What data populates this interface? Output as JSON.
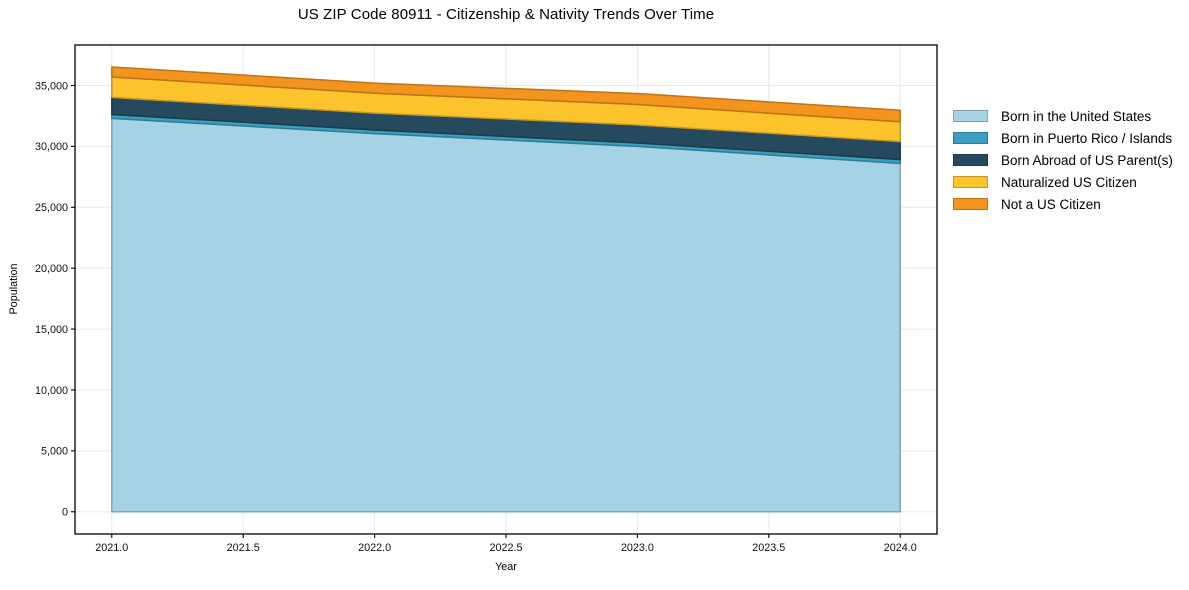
{
  "chart_data": {
    "type": "area",
    "stacked": true,
    "title": "US ZIP Code 80911 - Citizenship & Nativity Trends Over Time",
    "xlabel": "Year",
    "ylabel": "Population",
    "x": [
      2021,
      2022,
      2023,
      2024
    ],
    "series": [
      {
        "name": "Born in the United States",
        "color": "#a6d2e6",
        "values": [
          32300,
          31050,
          30000,
          28600
        ]
      },
      {
        "name": "Born in Puerto Rico / Islands",
        "color": "#3ba0c0",
        "values": [
          320,
          300,
          280,
          320
        ]
      },
      {
        "name": "Born Abroad of US Parent(s)",
        "color": "#254a5d",
        "values": [
          1400,
          1380,
          1480,
          1480
        ]
      },
      {
        "name": "Naturalized US Citizen",
        "color": "#fcc32d",
        "values": [
          1680,
          1640,
          1680,
          1620
        ]
      },
      {
        "name": "Not a US Citizen",
        "color": "#f3941f",
        "values": [
          820,
          820,
          900,
          950
        ]
      }
    ],
    "xlim": [
      2020.86,
      2024.14
    ],
    "ylim": [
      -1825,
      38325
    ],
    "xticks": {
      "values": [
        2021.0,
        2021.5,
        2022.0,
        2022.5,
        2023.0,
        2023.5,
        2024.0
      ],
      "labels": [
        "2021.0",
        "2021.5",
        "2022.0",
        "2022.5",
        "2023.0",
        "2023.5",
        "2024.0"
      ]
    },
    "yticks": {
      "values": [
        0,
        5000,
        10000,
        15000,
        20000,
        25000,
        30000,
        35000
      ],
      "labels": [
        "0",
        "5,000",
        "10,000",
        "15,000",
        "20,000",
        "25,000",
        "30,000",
        "35,000"
      ]
    },
    "grid": true,
    "legend_position": "right",
    "colors": {
      "background": "#ffffff",
      "grid": "#e8e8e8",
      "spine": "#000000"
    }
  }
}
